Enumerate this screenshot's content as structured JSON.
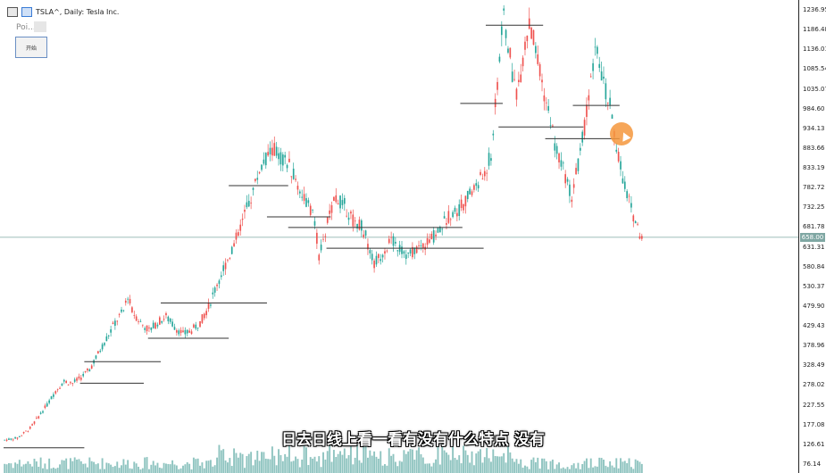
{
  "header": {
    "symbol_label": "TSLA^, Daily:  Tesla Inc."
  },
  "panel": {
    "poi_label": "Poi...",
    "button_label": "开始"
  },
  "subtitle": "日去日线上看一看有没有什么特点  没有",
  "colors": {
    "bull": "#26a69a",
    "bear": "#ef5350",
    "volume": "#8fc4c0",
    "level_line": "#333333",
    "current_price_line": "#7fa7a3"
  },
  "chart_data": {
    "type": "candlestick",
    "title": "",
    "xlabel": "",
    "ylabel": "",
    "ylim": [
      65,
      1248
    ],
    "y_tick_labels": [
      "1236.95",
      "1186.48",
      "1136.01",
      "1085.54",
      "1035.07",
      "984.60",
      "934.13",
      "883.66",
      "833.19",
      "782.72",
      "732.25",
      "681.78",
      "631.31",
      "580.84",
      "530.37",
      "479.90",
      "429.43",
      "378.96",
      "328.49",
      "278.02",
      "227.55",
      "177.08",
      "126.61",
      "76.14"
    ],
    "current_price": 658.0,
    "current_price_label": "658.00",
    "close_path": [
      [
        0,
        140
      ],
      [
        6,
        145
      ],
      [
        12,
        170
      ],
      [
        16,
        200
      ],
      [
        20,
        230
      ],
      [
        24,
        265
      ],
      [
        28,
        290
      ],
      [
        32,
        285
      ],
      [
        36,
        300
      ],
      [
        40,
        320
      ],
      [
        44,
        360
      ],
      [
        48,
        400
      ],
      [
        52,
        440
      ],
      [
        56,
        470
      ],
      [
        58,
        510
      ],
      [
        60,
        470
      ],
      [
        64,
        440
      ],
      [
        68,
        420
      ],
      [
        72,
        440
      ],
      [
        76,
        455
      ],
      [
        80,
        430
      ],
      [
        84,
        410
      ],
      [
        88,
        420
      ],
      [
        92,
        440
      ],
      [
        96,
        480
      ],
      [
        100,
        540
      ],
      [
        104,
        590
      ],
      [
        108,
        640
      ],
      [
        112,
        700
      ],
      [
        116,
        760
      ],
      [
        120,
        830
      ],
      [
        124,
        870
      ],
      [
        127,
        880
      ],
      [
        130,
        860
      ],
      [
        134,
        840
      ],
      [
        138,
        790
      ],
      [
        142,
        750
      ],
      [
        146,
        700
      ],
      [
        148,
        610
      ],
      [
        150,
        640
      ],
      [
        152,
        700
      ],
      [
        156,
        760
      ],
      [
        160,
        740
      ],
      [
        164,
        700
      ],
      [
        168,
        690
      ],
      [
        170,
        660
      ],
      [
        174,
        590
      ],
      [
        178,
        620
      ],
      [
        182,
        650
      ],
      [
        186,
        630
      ],
      [
        190,
        610
      ],
      [
        194,
        630
      ],
      [
        198,
        640
      ],
      [
        202,
        660
      ],
      [
        206,
        690
      ],
      [
        210,
        720
      ],
      [
        214,
        730
      ],
      [
        218,
        760
      ],
      [
        222,
        790
      ],
      [
        226,
        820
      ],
      [
        229,
        870
      ],
      [
        231,
        990
      ],
      [
        233,
        1120
      ],
      [
        235,
        1220
      ],
      [
        237,
        1150
      ],
      [
        239,
        1080
      ],
      [
        241,
        1030
      ],
      [
        243,
        1080
      ],
      [
        245,
        1150
      ],
      [
        247,
        1200
      ],
      [
        249,
        1160
      ],
      [
        251,
        1100
      ],
      [
        253,
        1050
      ],
      [
        255,
        1000
      ],
      [
        257,
        960
      ],
      [
        259,
        900
      ],
      [
        261,
        860
      ],
      [
        263,
        830
      ],
      [
        265,
        800
      ],
      [
        267,
        760
      ],
      [
        269,
        820
      ],
      [
        271,
        870
      ],
      [
        273,
        940
      ],
      [
        275,
        1010
      ],
      [
        277,
        1090
      ],
      [
        279,
        1150
      ],
      [
        281,
        1080
      ],
      [
        283,
        1030
      ],
      [
        285,
        990
      ],
      [
        287,
        920
      ],
      [
        289,
        870
      ],
      [
        291,
        810
      ],
      [
        293,
        770
      ],
      [
        295,
        730
      ],
      [
        297,
        700
      ],
      [
        299,
        670
      ],
      [
        301,
        645
      ]
    ],
    "horizontal_levels": [
      {
        "value": 120,
        "x_start": 0,
        "x_end": 38
      },
      {
        "value": 285,
        "x_start": 36,
        "x_end": 66
      },
      {
        "value": 340,
        "x_start": 38,
        "x_end": 74
      },
      {
        "value": 400,
        "x_start": 68,
        "x_end": 106
      },
      {
        "value": 490,
        "x_start": 74,
        "x_end": 124
      },
      {
        "value": 790,
        "x_start": 106,
        "x_end": 134
      },
      {
        "value": 710,
        "x_start": 124,
        "x_end": 154
      },
      {
        "value": 683,
        "x_start": 134,
        "x_end": 216
      },
      {
        "value": 630,
        "x_start": 152,
        "x_end": 226
      },
      {
        "value": 1200,
        "x_start": 227,
        "x_end": 254
      },
      {
        "value": 1000,
        "x_start": 215,
        "x_end": 235
      },
      {
        "value": 940,
        "x_start": 233,
        "x_end": 273
      },
      {
        "value": 910,
        "x_start": 255,
        "x_end": 290
      },
      {
        "value": 995,
        "x_start": 268,
        "x_end": 290
      }
    ]
  }
}
